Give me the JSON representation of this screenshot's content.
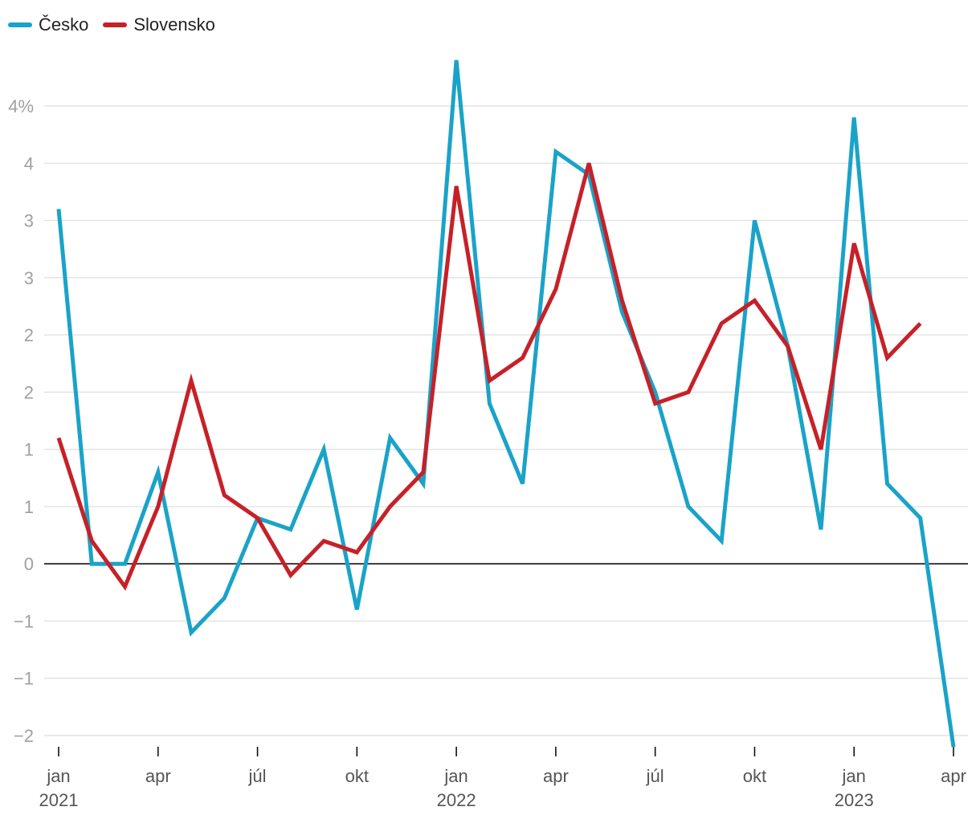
{
  "legend": [
    {
      "name": "Česko",
      "color": "#1aa3c8"
    },
    {
      "name": "Slovensko",
      "color": "#c62128"
    }
  ],
  "chart_data": {
    "type": "line",
    "title": "",
    "xlabel": "",
    "ylabel": "",
    "x": [
      "2021-01",
      "2021-02",
      "2021-03",
      "2021-04",
      "2021-05",
      "2021-06",
      "2021-07",
      "2021-08",
      "2021-09",
      "2021-10",
      "2021-11",
      "2021-12",
      "2022-01",
      "2022-02",
      "2022-03",
      "2022-04",
      "2022-05",
      "2022-06",
      "2022-07",
      "2022-08",
      "2022-09",
      "2022-10",
      "2022-11",
      "2022-12",
      "2023-01",
      "2023-02",
      "2023-03",
      "2023-04"
    ],
    "series": [
      {
        "name": "Česko",
        "color": "#1aa3c8",
        "values": [
          3.1,
          0.0,
          0.0,
          0.8,
          -0.6,
          -0.3,
          0.4,
          0.3,
          1.0,
          -0.4,
          1.1,
          0.7,
          4.4,
          1.4,
          0.7,
          3.6,
          3.4,
          2.2,
          1.5,
          0.5,
          0.2,
          3.0,
          1.9,
          0.3,
          3.9,
          0.7,
          0.4,
          -1.6
        ]
      },
      {
        "name": "Slovensko",
        "color": "#c62128",
        "values": [
          1.1,
          0.2,
          -0.2,
          0.5,
          1.6,
          0.6,
          0.4,
          -0.1,
          0.2,
          0.1,
          0.5,
          0.8,
          3.3,
          1.6,
          1.8,
          2.4,
          3.5,
          2.3,
          1.4,
          1.5,
          2.1,
          2.3,
          1.9,
          1.0,
          2.8,
          1.8,
          2.1,
          null
        ]
      }
    ],
    "ylim": [
      -1.5,
      4.0
    ],
    "yticks": [
      {
        "value": 4.0,
        "label": "4%"
      },
      {
        "value": 3.5,
        "label": "4"
      },
      {
        "value": 3.0,
        "label": "3"
      },
      {
        "value": 2.5,
        "label": "3"
      },
      {
        "value": 2.0,
        "label": "2"
      },
      {
        "value": 1.5,
        "label": "2"
      },
      {
        "value": 1.0,
        "label": "1"
      },
      {
        "value": 0.5,
        "label": "1"
      },
      {
        "value": 0.0,
        "label": "0"
      },
      {
        "value": -0.5,
        "label": "−1"
      },
      {
        "value": -1.0,
        "label": "−1"
      },
      {
        "value": -1.5,
        "label": "−2"
      }
    ],
    "xticks": [
      {
        "index": 0,
        "label": "jan",
        "year": "2021"
      },
      {
        "index": 3,
        "label": "apr",
        "year": ""
      },
      {
        "index": 6,
        "label": "júl",
        "year": ""
      },
      {
        "index": 9,
        "label": "okt",
        "year": ""
      },
      {
        "index": 12,
        "label": "jan",
        "year": "2022"
      },
      {
        "index": 15,
        "label": "apr",
        "year": ""
      },
      {
        "index": 18,
        "label": "júl",
        "year": ""
      },
      {
        "index": 21,
        "label": "okt",
        "year": ""
      },
      {
        "index": 24,
        "label": "jan",
        "year": "2023"
      },
      {
        "index": 27,
        "label": "apr",
        "year": ""
      }
    ],
    "grid": true,
    "legend_position": "top-left"
  }
}
